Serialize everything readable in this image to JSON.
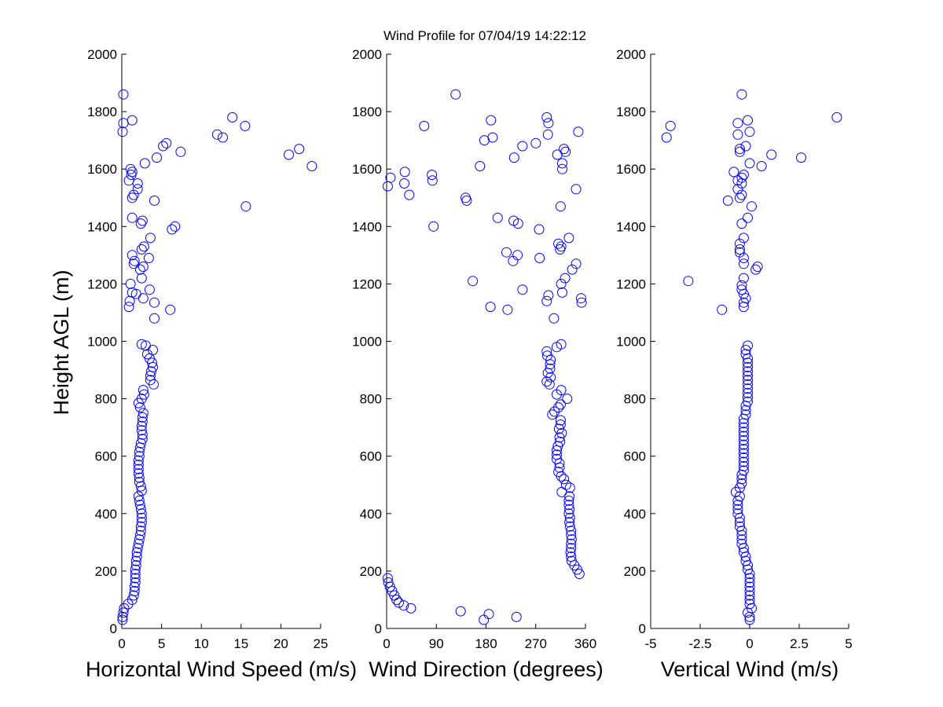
{
  "figure": {
    "title": "Wind Profile for  07/04/19 14:22:12",
    "ylabel": "Height AGL (m)"
  },
  "chart_data": [
    {
      "type": "scatter",
      "xlabel": "Horizontal Wind Speed (m/s)",
      "ylabel": "Height AGL (m)",
      "xlim": [
        0,
        25
      ],
      "ylim": [
        0,
        2000
      ],
      "xticks": [
        0,
        5,
        10,
        15,
        20,
        25
      ],
      "xtick_labels": [
        "0",
        "5",
        "10",
        "15",
        "20",
        "25"
      ],
      "yticks": [
        0,
        200,
        400,
        600,
        800,
        1000,
        1200,
        1400,
        1600,
        1800,
        2000
      ],
      "marker": "circle-open",
      "color": "#0000ff",
      "points": [
        [
          0.1,
          30
        ],
        [
          0.1,
          40
        ],
        [
          0.2,
          55
        ],
        [
          0.3,
          70
        ],
        [
          0.8,
          85
        ],
        [
          1.3,
          100
        ],
        [
          1.5,
          115
        ],
        [
          1.6,
          130
        ],
        [
          1.6,
          145
        ],
        [
          1.7,
          160
        ],
        [
          1.7,
          175
        ],
        [
          1.7,
          190
        ],
        [
          1.7,
          205
        ],
        [
          1.8,
          220
        ],
        [
          1.8,
          235
        ],
        [
          1.9,
          250
        ],
        [
          1.9,
          265
        ],
        [
          2.0,
          280
        ],
        [
          2.1,
          295
        ],
        [
          2.2,
          310
        ],
        [
          2.3,
          325
        ],
        [
          2.4,
          340
        ],
        [
          2.4,
          355
        ],
        [
          2.5,
          370
        ],
        [
          2.5,
          385
        ],
        [
          2.5,
          400
        ],
        [
          2.4,
          415
        ],
        [
          2.3,
          430
        ],
        [
          2.2,
          445
        ],
        [
          2.1,
          460
        ],
        [
          2.5,
          480
        ],
        [
          2.4,
          495
        ],
        [
          2.2,
          510
        ],
        [
          2.2,
          525
        ],
        [
          2.1,
          540
        ],
        [
          2.1,
          555
        ],
        [
          2.1,
          570
        ],
        [
          2.1,
          585
        ],
        [
          2.2,
          600
        ],
        [
          2.2,
          615
        ],
        [
          2.3,
          630
        ],
        [
          2.4,
          645
        ],
        [
          2.6,
          660
        ],
        [
          2.6,
          675
        ],
        [
          2.5,
          690
        ],
        [
          2.5,
          705
        ],
        [
          2.6,
          720
        ],
        [
          2.6,
          735
        ],
        [
          2.7,
          750
        ],
        [
          2.3,
          770
        ],
        [
          2.1,
          785
        ],
        [
          2.5,
          800
        ],
        [
          2.8,
          815
        ],
        [
          2.7,
          830
        ],
        [
          4.0,
          850
        ],
        [
          3.6,
          865
        ],
        [
          3.6,
          880
        ],
        [
          3.7,
          895
        ],
        [
          3.9,
          910
        ],
        [
          3.8,
          925
        ],
        [
          3.5,
          940
        ],
        [
          3.2,
          955
        ],
        [
          3.9,
          970
        ],
        [
          3.0,
          985
        ],
        [
          2.5,
          990
        ],
        [
          4.1,
          1080
        ],
        [
          6.1,
          1110
        ],
        [
          0.9,
          1120
        ],
        [
          1.0,
          1140
        ],
        [
          4.1,
          1135
        ],
        [
          2.7,
          1150
        ],
        [
          1.8,
          1165
        ],
        [
          1.3,
          1170
        ],
        [
          3.5,
          1180
        ],
        [
          1.1,
          1200
        ],
        [
          2.5,
          1220
        ],
        [
          2.7,
          1260
        ],
        [
          2.3,
          1250
        ],
        [
          1.6,
          1280
        ],
        [
          1.5,
          1270
        ],
        [
          3.4,
          1290
        ],
        [
          1.3,
          1300
        ],
        [
          2.5,
          1320
        ],
        [
          2.8,
          1330
        ],
        [
          3.6,
          1360
        ],
        [
          6.3,
          1390
        ],
        [
          6.7,
          1400
        ],
        [
          2.4,
          1410
        ],
        [
          2.6,
          1420
        ],
        [
          1.3,
          1430
        ],
        [
          15.6,
          1470
        ],
        [
          4.1,
          1490
        ],
        [
          1.3,
          1500
        ],
        [
          1.5,
          1510
        ],
        [
          2.0,
          1530
        ],
        [
          2.0,
          1550
        ],
        [
          0.9,
          1560
        ],
        [
          1.2,
          1580
        ],
        [
          1.3,
          1590
        ],
        [
          1.1,
          1600
        ],
        [
          2.9,
          1620
        ],
        [
          4.4,
          1640
        ],
        [
          21.0,
          1650
        ],
        [
          22.3,
          1670
        ],
        [
          5.2,
          1680
        ],
        [
          5.6,
          1690
        ],
        [
          7.4,
          1660
        ],
        [
          23.9,
          1610
        ],
        [
          12.0,
          1720
        ],
        [
          12.7,
          1710
        ],
        [
          15.5,
          1750
        ],
        [
          13.9,
          1780
        ],
        [
          0.2,
          1760
        ],
        [
          1.3,
          1770
        ],
        [
          0.1,
          1730
        ],
        [
          0.2,
          1860
        ]
      ]
    },
    {
      "type": "scatter",
      "xlabel": "Wind Direction (degrees)",
      "ylabel": "",
      "xlim": [
        0,
        360
      ],
      "ylim": [
        0,
        2000
      ],
      "xticks": [
        0,
        90,
        180,
        270,
        360
      ],
      "xtick_labels": [
        "0",
        "90",
        "180",
        "270",
        "360"
      ],
      "yticks": [
        0,
        200,
        400,
        600,
        800,
        1000,
        1200,
        1400,
        1600,
        1800,
        2000
      ],
      "marker": "circle-open",
      "color": "#0000ff",
      "points": [
        [
          176,
          30
        ],
        [
          185,
          50
        ],
        [
          134,
          60
        ],
        [
          235,
          40
        ],
        [
          44,
          70
        ],
        [
          31,
          80
        ],
        [
          22,
          90
        ],
        [
          18,
          100
        ],
        [
          14,
          115
        ],
        [
          10,
          130
        ],
        [
          6,
          145
        ],
        [
          3,
          160
        ],
        [
          2,
          175
        ],
        [
          349,
          190
        ],
        [
          345,
          205
        ],
        [
          340,
          220
        ],
        [
          335,
          235
        ],
        [
          334,
          250
        ],
        [
          333,
          265
        ],
        [
          334,
          280
        ],
        [
          334,
          295
        ],
        [
          335,
          310
        ],
        [
          334,
          325
        ],
        [
          334,
          340
        ],
        [
          332,
          355
        ],
        [
          331,
          370
        ],
        [
          332,
          385
        ],
        [
          330,
          400
        ],
        [
          331,
          415
        ],
        [
          330,
          430
        ],
        [
          330,
          445
        ],
        [
          331,
          460
        ],
        [
          317,
          475
        ],
        [
          332,
          490
        ],
        [
          325,
          500
        ],
        [
          321,
          520
        ],
        [
          316,
          530
        ],
        [
          311,
          545
        ],
        [
          313,
          560
        ],
        [
          313,
          575
        ],
        [
          308,
          590
        ],
        [
          308,
          605
        ],
        [
          308,
          620
        ],
        [
          310,
          635
        ],
        [
          314,
          650
        ],
        [
          313,
          665
        ],
        [
          317,
          680
        ],
        [
          312,
          695
        ],
        [
          315,
          710
        ],
        [
          315,
          725
        ],
        [
          300,
          745
        ],
        [
          304,
          755
        ],
        [
          311,
          770
        ],
        [
          315,
          780
        ],
        [
          327,
          800
        ],
        [
          308,
          815
        ],
        [
          316,
          830
        ],
        [
          295,
          850
        ],
        [
          290,
          860
        ],
        [
          297,
          875
        ],
        [
          292,
          890
        ],
        [
          296,
          905
        ],
        [
          296,
          920
        ],
        [
          297,
          935
        ],
        [
          291,
          950
        ],
        [
          290,
          965
        ],
        [
          308,
          980
        ],
        [
          316,
          990
        ],
        [
          303,
          1080
        ],
        [
          219,
          1110
        ],
        [
          188,
          1120
        ],
        [
          353,
          1135
        ],
        [
          290,
          1140
        ],
        [
          352,
          1150
        ],
        [
          293,
          1160
        ],
        [
          318,
          1170
        ],
        [
          246,
          1180
        ],
        [
          316,
          1200
        ],
        [
          156,
          1210
        ],
        [
          323,
          1220
        ],
        [
          336,
          1250
        ],
        [
          343,
          1270
        ],
        [
          229,
          1280
        ],
        [
          277,
          1290
        ],
        [
          217,
          1310
        ],
        [
          237,
          1300
        ],
        [
          311,
          1340
        ],
        [
          316,
          1330
        ],
        [
          314,
          1320
        ],
        [
          330,
          1360
        ],
        [
          276,
          1390
        ],
        [
          85,
          1400
        ],
        [
          238,
          1410
        ],
        [
          230,
          1420
        ],
        [
          201,
          1430
        ],
        [
          315,
          1470
        ],
        [
          145,
          1490
        ],
        [
          143,
          1500
        ],
        [
          41,
          1510
        ],
        [
          343,
          1530
        ],
        [
          32,
          1550
        ],
        [
          83,
          1560
        ],
        [
          2,
          1540
        ],
        [
          7,
          1570
        ],
        [
          82,
          1580
        ],
        [
          33,
          1590
        ],
        [
          169,
          1610
        ],
        [
          318,
          1620
        ],
        [
          318,
          1600
        ],
        [
          231,
          1640
        ],
        [
          309,
          1650
        ],
        [
          321,
          1670
        ],
        [
          324,
          1660
        ],
        [
          246,
          1680
        ],
        [
          270,
          1690
        ],
        [
          192,
          1710
        ],
        [
          177,
          1700
        ],
        [
          292,
          1720
        ],
        [
          347,
          1730
        ],
        [
          68,
          1750
        ],
        [
          293,
          1760
        ],
        [
          290,
          1780
        ],
        [
          189,
          1770
        ],
        [
          125,
          1860
        ]
      ]
    },
    {
      "type": "scatter",
      "xlabel": "Vertical Wind (m/s)",
      "ylabel": "",
      "xlim": [
        -5,
        5
      ],
      "ylim": [
        0,
        2000
      ],
      "xticks": [
        -5,
        -2.5,
        0,
        2.5,
        5
      ],
      "xtick_labels": [
        "-5",
        "-2.5",
        "0",
        "2.5",
        "5"
      ],
      "yticks": [
        0,
        200,
        400,
        600,
        800,
        1000,
        1200,
        1400,
        1600,
        1800,
        2000
      ],
      "marker": "circle-open",
      "color": "#0000ff",
      "points": [
        [
          0.0,
          30
        ],
        [
          0.0,
          40
        ],
        [
          -0.1,
          55
        ],
        [
          0.1,
          70
        ],
        [
          0.0,
          85
        ],
        [
          0.0,
          100
        ],
        [
          0.0,
          115
        ],
        [
          0.0,
          130
        ],
        [
          0.0,
          145
        ],
        [
          0.0,
          160
        ],
        [
          0.0,
          175
        ],
        [
          0.0,
          190
        ],
        [
          -0.1,
          205
        ],
        [
          -0.1,
          220
        ],
        [
          -0.2,
          235
        ],
        [
          -0.2,
          250
        ],
        [
          -0.3,
          265
        ],
        [
          -0.3,
          280
        ],
        [
          -0.4,
          295
        ],
        [
          -0.4,
          310
        ],
        [
          -0.4,
          325
        ],
        [
          -0.4,
          340
        ],
        [
          -0.5,
          355
        ],
        [
          -0.5,
          370
        ],
        [
          -0.5,
          385
        ],
        [
          -0.6,
          400
        ],
        [
          -0.6,
          415
        ],
        [
          -0.6,
          430
        ],
        [
          -0.6,
          445
        ],
        [
          -0.5,
          460
        ],
        [
          -0.7,
          475
        ],
        [
          -0.5,
          490
        ],
        [
          -0.4,
          505
        ],
        [
          -0.4,
          520
        ],
        [
          -0.4,
          535
        ],
        [
          -0.3,
          550
        ],
        [
          -0.3,
          565
        ],
        [
          -0.3,
          580
        ],
        [
          -0.3,
          595
        ],
        [
          -0.3,
          610
        ],
        [
          -0.3,
          625
        ],
        [
          -0.3,
          640
        ],
        [
          -0.3,
          655
        ],
        [
          -0.3,
          670
        ],
        [
          -0.3,
          685
        ],
        [
          -0.3,
          700
        ],
        [
          -0.3,
          715
        ],
        [
          -0.3,
          730
        ],
        [
          -0.2,
          745
        ],
        [
          -0.2,
          760
        ],
        [
          -0.2,
          775
        ],
        [
          -0.1,
          790
        ],
        [
          -0.1,
          805
        ],
        [
          -0.1,
          820
        ],
        [
          -0.1,
          835
        ],
        [
          -0.1,
          850
        ],
        [
          -0.1,
          865
        ],
        [
          -0.1,
          880
        ],
        [
          -0.1,
          895
        ],
        [
          -0.1,
          910
        ],
        [
          -0.1,
          925
        ],
        [
          -0.1,
          940
        ],
        [
          -0.2,
          955
        ],
        [
          -0.2,
          970
        ],
        [
          -0.1,
          985
        ],
        [
          -1.4,
          1110
        ],
        [
          -0.3,
          1120
        ],
        [
          -0.3,
          1135
        ],
        [
          -0.2,
          1150
        ],
        [
          -0.3,
          1165
        ],
        [
          -0.4,
          1180
        ],
        [
          -3.1,
          1210
        ],
        [
          -0.3,
          1220
        ],
        [
          -0.4,
          1195
        ],
        [
          0.3,
          1250
        ],
        [
          0.4,
          1260
        ],
        [
          -0.3,
          1270
        ],
        [
          -0.3,
          1290
        ],
        [
          -0.5,
          1310
        ],
        [
          -0.5,
          1320
        ],
        [
          -0.5,
          1340
        ],
        [
          -0.3,
          1360
        ],
        [
          -0.4,
          1410
        ],
        [
          -0.1,
          1430
        ],
        [
          0.1,
          1470
        ],
        [
          -1.1,
          1490
        ],
        [
          -0.5,
          1500
        ],
        [
          -0.4,
          1510
        ],
        [
          -0.6,
          1530
        ],
        [
          -0.4,
          1550
        ],
        [
          -0.6,
          1560
        ],
        [
          -0.4,
          1570
        ],
        [
          -0.8,
          1590
        ],
        [
          -0.3,
          1580
        ],
        [
          0.0,
          1620
        ],
        [
          0.6,
          1610
        ],
        [
          1.1,
          1650
        ],
        [
          2.6,
          1640
        ],
        [
          -0.5,
          1660
        ],
        [
          -0.5,
          1670
        ],
        [
          -0.2,
          1680
        ],
        [
          -4.2,
          1710
        ],
        [
          -0.6,
          1720
        ],
        [
          0.0,
          1730
        ],
        [
          -4.0,
          1750
        ],
        [
          -0.6,
          1760
        ],
        [
          -0.1,
          1770
        ],
        [
          4.4,
          1780
        ],
        [
          -0.4,
          1860
        ]
      ]
    }
  ]
}
